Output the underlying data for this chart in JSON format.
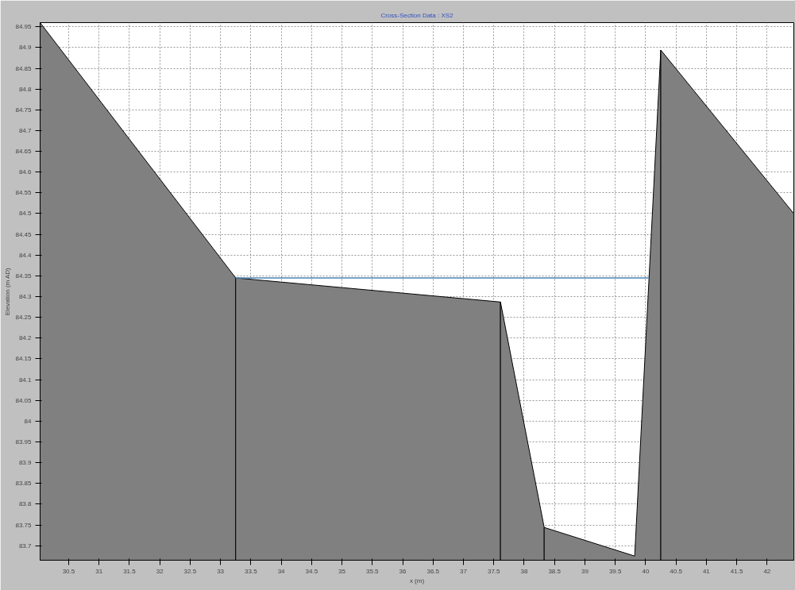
{
  "chart_data": {
    "type": "area",
    "title": "Cross-Section Data : XS2",
    "xlabel": "x (m)",
    "ylabel": "Elevation (m AD)",
    "series": [
      {
        "color": "#808080",
        "x": [
          30.03,
          33.25
        ],
        "values": [
          84.96,
          84.345
        ]
      },
      {
        "color": "#808080",
        "x": [
          33.25,
          37.61
        ],
        "values": [
          84.345,
          84.287
        ]
      },
      {
        "color": "#808080",
        "x": [
          37.61,
          38.33
        ],
        "values": [
          84.287,
          83.744
        ]
      },
      {
        "color": "#808080",
        "x": [
          38.33,
          39.82,
          40.25
        ],
        "values": [
          83.744,
          83.675,
          84.894
        ]
      },
      {
        "color": "#808080",
        "x": [
          40.25,
          42.44
        ],
        "values": [
          84.894,
          84.5
        ]
      },
      {
        "type": "line",
        "color": "#4682b4",
        "x": [
          33.25,
          40.05
        ],
        "values": [
          84.345,
          84.345
        ]
      }
    ],
    "xlim": [
      30.03,
      42.44
    ],
    "ylim": [
      83.665,
      84.96
    ],
    "xticks": [
      30.5,
      31,
      31.5,
      32,
      32.5,
      33,
      33.5,
      34,
      34.5,
      35,
      35.5,
      36,
      36.5,
      37,
      37.5,
      38,
      38.5,
      39,
      39.5,
      40,
      40.5,
      41,
      41.5,
      42
    ],
    "yticks": [
      83.7,
      83.75,
      83.8,
      83.85,
      83.9,
      83.95,
      84,
      84.05,
      84.1,
      84.15,
      84.2,
      84.25,
      84.3,
      84.35,
      84.4,
      84.45,
      84.5,
      84.55,
      84.6,
      84.65,
      84.7,
      84.75,
      84.8,
      84.85,
      84.9,
      84.95
    ],
    "grid": true
  }
}
